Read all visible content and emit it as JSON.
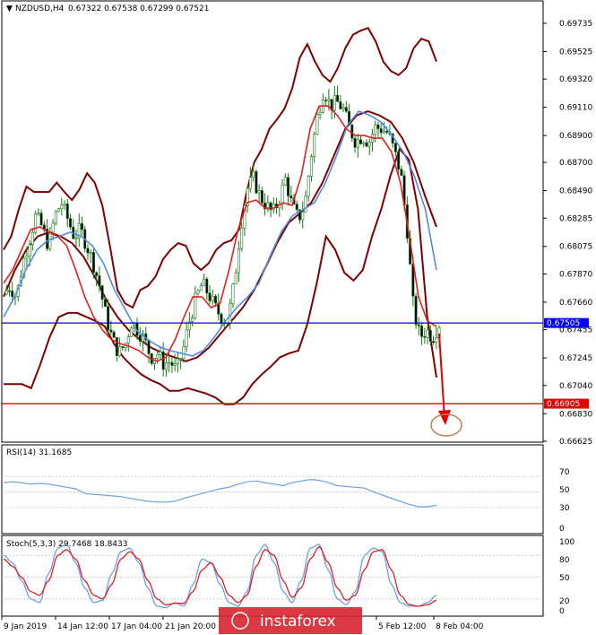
{
  "header": {
    "symbol": "NZDUSD,H4",
    "values": "0.67322 0.67538 0.67299 0.67521"
  },
  "rsi": {
    "title": "RSI(14) 31.1685",
    "scale": [
      "70",
      "50",
      "30",
      "0"
    ]
  },
  "stoch": {
    "title": "Stoch(5,3,3) 29.7468 18.8433",
    "scale": [
      "100",
      "80",
      "50",
      "20",
      "0"
    ]
  },
  "price_levels": {
    "current": "0.67505",
    "target": "0.66905"
  },
  "watermark": "instaforex",
  "colors": {
    "candle": "#1a7a1a",
    "bollinger": "#7f0000",
    "ma_fast": "#e02020",
    "ma_slow": "#4f8ae8",
    "current_line": "#0000ff",
    "target_line": "#e00000",
    "arrow": "#e00000",
    "ellipse": "#c08050",
    "indicator_line": "#6aa0ec",
    "stoch_signal": "#e02020",
    "watermark_bg": "#d9232e"
  },
  "chart_data": {
    "type": "candlestick",
    "y_ticks": [
      "0.69735",
      "0.69525",
      "0.69320",
      "0.69110",
      "0.68900",
      "0.68700",
      "0.68490",
      "0.68285",
      "0.68075",
      "0.67870",
      "0.67660",
      "0.67455",
      "0.67245",
      "0.67040",
      "0.66830",
      "0.66625"
    ],
    "ylim": [
      0.66625,
      0.69735
    ],
    "x_ticks": [
      "9 Jan 2019",
      "14 Jan 12:00",
      "17 Jan 04:00",
      "21 Jan 20:00",
      "5 Feb 12:00",
      "8 Feb 04:00"
    ],
    "close_path": [
      0.6772,
      0.6778,
      0.677,
      0.6795,
      0.6812,
      0.683,
      0.6822,
      0.6808,
      0.683,
      0.684,
      0.6828,
      0.6815,
      0.682,
      0.6808,
      0.6795,
      0.6778,
      0.6755,
      0.6738,
      0.6728,
      0.6735,
      0.6752,
      0.6745,
      0.6738,
      0.6725,
      0.6728,
      0.672,
      0.6722,
      0.6715,
      0.673,
      0.6752,
      0.6768,
      0.678,
      0.6772,
      0.6762,
      0.6755,
      0.6752,
      0.678,
      0.6822,
      0.685,
      0.6858,
      0.6845,
      0.6838,
      0.6832,
      0.6842,
      0.6858,
      0.6838,
      0.6828,
      0.6838,
      0.6875,
      0.6905,
      0.6925,
      0.6912,
      0.6915,
      0.691,
      0.6895,
      0.6885,
      0.689,
      0.6885,
      0.6896,
      0.6895,
      0.6892,
      0.6878,
      0.6862,
      0.682,
      0.676,
      0.674,
      0.6745,
      0.674,
      0.675
    ],
    "series": [
      {
        "name": "Bollinger upper",
        "values": [
          0.6805,
          0.6815,
          0.6835,
          0.6852,
          0.6848,
          0.6848,
          0.6848,
          0.6855,
          0.6848,
          0.6842,
          0.685,
          0.6862,
          0.6855,
          0.6838,
          0.6808,
          0.6775,
          0.6765,
          0.6762,
          0.6775,
          0.6778,
          0.6785,
          0.6798,
          0.6805,
          0.681,
          0.6808,
          0.6795,
          0.679,
          0.6795,
          0.6805,
          0.681,
          0.6812,
          0.682,
          0.6848,
          0.687,
          0.688,
          0.6895,
          0.6902,
          0.691,
          0.6925,
          0.6948,
          0.6958,
          0.6945,
          0.6935,
          0.693,
          0.694,
          0.6955,
          0.6965,
          0.6968,
          0.697,
          0.696,
          0.6945,
          0.6938,
          0.6935,
          0.694,
          0.6955,
          0.6962,
          0.696,
          0.6945
        ]
      },
      {
        "name": "Bollinger lower",
        "values": [
          0.6705,
          0.6705,
          0.6705,
          0.6702,
          0.672,
          0.674,
          0.6755,
          0.6758,
          0.6758,
          0.6755,
          0.6752,
          0.6748,
          0.6735,
          0.6725,
          0.6718,
          0.6712,
          0.6708,
          0.6705,
          0.67,
          0.67,
          0.6702,
          0.67,
          0.6698,
          0.6695,
          0.669,
          0.669,
          0.6695,
          0.6705,
          0.6712,
          0.6718,
          0.6725,
          0.6728,
          0.673,
          0.675,
          0.678,
          0.6815,
          0.6805,
          0.6788,
          0.6782,
          0.679,
          0.6815,
          0.6835,
          0.686,
          0.688,
          0.6872,
          0.6835,
          0.6755,
          0.671
        ]
      },
      {
        "name": "MA fast",
        "values": [
          0.678,
          0.679,
          0.6805,
          0.682,
          0.6822,
          0.6818,
          0.6815,
          0.6808,
          0.679,
          0.677,
          0.6755,
          0.6745,
          0.6738,
          0.6735,
          0.6733,
          0.673,
          0.6725,
          0.6722,
          0.6725,
          0.6738,
          0.6755,
          0.677,
          0.677,
          0.6762,
          0.6765,
          0.679,
          0.682,
          0.684,
          0.6842,
          0.6836,
          0.6836,
          0.684,
          0.6838,
          0.686,
          0.6895,
          0.6912,
          0.6912,
          0.6905,
          0.6895,
          0.689,
          0.689,
          0.6888,
          0.6888,
          0.6878,
          0.6855,
          0.6815,
          0.677,
          0.6752,
          0.6748
        ]
      },
      {
        "name": "MA slow",
        "values": [
          0.6755,
          0.677,
          0.679,
          0.6805,
          0.6812,
          0.6815,
          0.6818,
          0.6815,
          0.6808,
          0.6795,
          0.6775,
          0.676,
          0.6745,
          0.6738,
          0.6733,
          0.673,
          0.6728,
          0.6726,
          0.673,
          0.674,
          0.6752,
          0.6762,
          0.677,
          0.678,
          0.68,
          0.6818,
          0.683,
          0.6835,
          0.684,
          0.6855,
          0.6875,
          0.6898,
          0.6908,
          0.6905,
          0.69,
          0.689,
          0.6878,
          0.686,
          0.6835,
          0.679
        ]
      },
      {
        "name": "Bollinger middle",
        "values": [
          0.677,
          0.679,
          0.6805,
          0.6815,
          0.6818,
          0.6815,
          0.681,
          0.68,
          0.6785,
          0.6768,
          0.6755,
          0.6745,
          0.6738,
          0.6732,
          0.6728,
          0.6725,
          0.6722,
          0.6725,
          0.6732,
          0.6742,
          0.6752,
          0.6762,
          0.6775,
          0.6792,
          0.681,
          0.6825,
          0.6832,
          0.684,
          0.6855,
          0.6875,
          0.6895,
          0.6905,
          0.6908,
          0.6905,
          0.69,
          0.6888,
          0.687,
          0.6845,
          0.6822
        ]
      },
      {
        "name": "RSI",
        "values": [
          62,
          63,
          62,
          60,
          61,
          60,
          58,
          56,
          54,
          48,
          47,
          46,
          45,
          44,
          42,
          40,
          38,
          37,
          37,
          38,
          42,
          45,
          48,
          51,
          54,
          56,
          60,
          63,
          64,
          62,
          60,
          58,
          62,
          64,
          66,
          65,
          62,
          58,
          57,
          56,
          55,
          50,
          46,
          42,
          38,
          34,
          31,
          31,
          33
        ]
      },
      {
        "name": "Stoch %K",
        "values": [
          80,
          70,
          45,
          20,
          15,
          55,
          90,
          95,
          70,
          35,
          15,
          18,
          55,
          85,
          90,
          70,
          35,
          10,
          8,
          15,
          10,
          40,
          75,
          70,
          40,
          15,
          10,
          30,
          80,
          95,
          70,
          30,
          15,
          45,
          90,
          95,
          60,
          20,
          12,
          30,
          80,
          90,
          85,
          40,
          15,
          10,
          10,
          15,
          25
        ]
      },
      {
        "name": "Stoch %D",
        "values": [
          75,
          65,
          50,
          30,
          25,
          45,
          80,
          88,
          75,
          45,
          25,
          20,
          40,
          75,
          85,
          75,
          45,
          20,
          12,
          14,
          14,
          30,
          60,
          70,
          50,
          25,
          15,
          25,
          65,
          88,
          80,
          45,
          22,
          35,
          75,
          92,
          70,
          35,
          18,
          25,
          60,
          85,
          88,
          60,
          25,
          12,
          10,
          12,
          18
        ]
      }
    ],
    "annotations": [
      "0.67505",
      "0.66905"
    ]
  }
}
